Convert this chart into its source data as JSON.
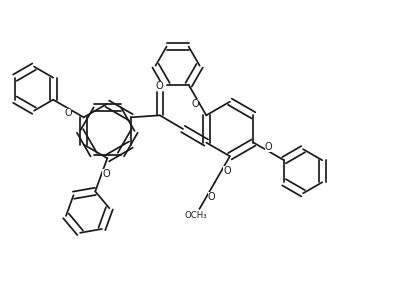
{
  "bg": "#ffffff",
  "lc": "#1a1a1a",
  "lw": 1.25,
  "figsize": [
    4.03,
    2.98
  ],
  "dpi": 100,
  "xlim": [
    0.0,
    1.0
  ],
  "ylim": [
    0.0,
    0.74
  ]
}
